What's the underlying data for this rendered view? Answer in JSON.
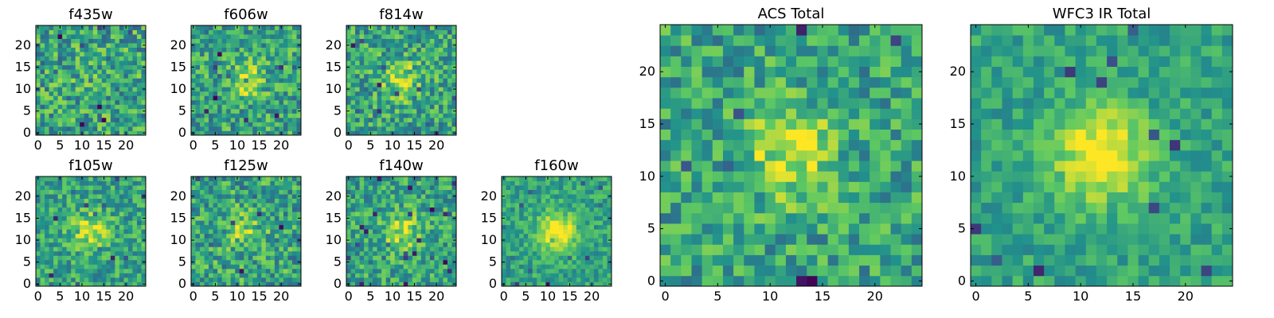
{
  "figure": {
    "colormap": "viridis",
    "colors": [
      "#440154",
      "#3b528b",
      "#21918c",
      "#5ec962",
      "#fde725"
    ]
  },
  "chart_data": [
    {
      "type": "heatmap",
      "title": "f435w",
      "grid_size": 25,
      "xticks": [
        "0",
        "5",
        "10",
        "15",
        "20"
      ],
      "yticks": [
        "0",
        "5",
        "10",
        "15",
        "20"
      ],
      "xlim": [
        0,
        24
      ],
      "ylim": [
        0,
        24
      ],
      "center_strength": 0.05,
      "noise": 0.55,
      "seed": 11
    },
    {
      "type": "heatmap",
      "title": "f606w",
      "grid_size": 25,
      "xticks": [
        "0",
        "5",
        "10",
        "15",
        "20"
      ],
      "yticks": [
        "0",
        "5",
        "10",
        "15",
        "20"
      ],
      "xlim": [
        0,
        24
      ],
      "ylim": [
        0,
        24
      ],
      "center_strength": 0.28,
      "noise": 0.5,
      "seed": 23
    },
    {
      "type": "heatmap",
      "title": "f814w",
      "grid_size": 25,
      "xticks": [
        "0",
        "5",
        "10",
        "15",
        "20"
      ],
      "yticks": [
        "0",
        "5",
        "10",
        "15",
        "20"
      ],
      "xlim": [
        0,
        24
      ],
      "ylim": [
        0,
        24
      ],
      "center_strength": 0.3,
      "noise": 0.5,
      "seed": 37
    },
    {
      "type": "heatmap",
      "title": "f105w",
      "grid_size": 25,
      "xticks": [
        "0",
        "5",
        "10",
        "15",
        "20"
      ],
      "yticks": [
        "0",
        "5",
        "10",
        "15",
        "20"
      ],
      "xlim": [
        0,
        24
      ],
      "ylim": [
        0,
        24
      ],
      "center_strength": 0.32,
      "noise": 0.42,
      "seed": 41
    },
    {
      "type": "heatmap",
      "title": "f125w",
      "grid_size": 25,
      "xticks": [
        "0",
        "5",
        "10",
        "15",
        "20"
      ],
      "yticks": [
        "0",
        "5",
        "10",
        "15",
        "20"
      ],
      "xlim": [
        0,
        24
      ],
      "ylim": [
        0,
        24
      ],
      "center_strength": 0.22,
      "noise": 0.5,
      "seed": 53
    },
    {
      "type": "heatmap",
      "title": "f140w",
      "grid_size": 25,
      "xticks": [
        "0",
        "5",
        "10",
        "15",
        "20"
      ],
      "yticks": [
        "0",
        "5",
        "10",
        "15",
        "20"
      ],
      "xlim": [
        0,
        24
      ],
      "ylim": [
        0,
        24
      ],
      "center_strength": 0.3,
      "noise": 0.45,
      "seed": 67
    },
    {
      "type": "heatmap",
      "title": "f160w",
      "grid_size": 25,
      "xticks": [
        "0",
        "5",
        "10",
        "15",
        "20"
      ],
      "yticks": [
        "0",
        "5",
        "10",
        "15",
        "20"
      ],
      "xlim": [
        0,
        24
      ],
      "ylim": [
        0,
        24
      ],
      "center_strength": 0.5,
      "noise": 0.32,
      "seed": 79
    },
    {
      "type": "heatmap",
      "title": "ACS Total",
      "grid_size": 25,
      "xticks": [
        "0",
        "5",
        "10",
        "15",
        "20"
      ],
      "yticks": [
        "0",
        "5",
        "10",
        "15",
        "20"
      ],
      "xlim": [
        0,
        24
      ],
      "ylim": [
        0,
        24
      ],
      "center_strength": 0.35,
      "noise": 0.45,
      "seed": 97
    },
    {
      "type": "heatmap",
      "title": "WFC3 IR Total",
      "grid_size": 25,
      "xticks": [
        "0",
        "5",
        "10",
        "15",
        "20"
      ],
      "yticks": [
        "0",
        "5",
        "10",
        "15",
        "20"
      ],
      "xlim": [
        0,
        24
      ],
      "ylim": [
        0,
        24
      ],
      "center_strength": 0.5,
      "noise": 0.28,
      "seed": 113
    }
  ]
}
